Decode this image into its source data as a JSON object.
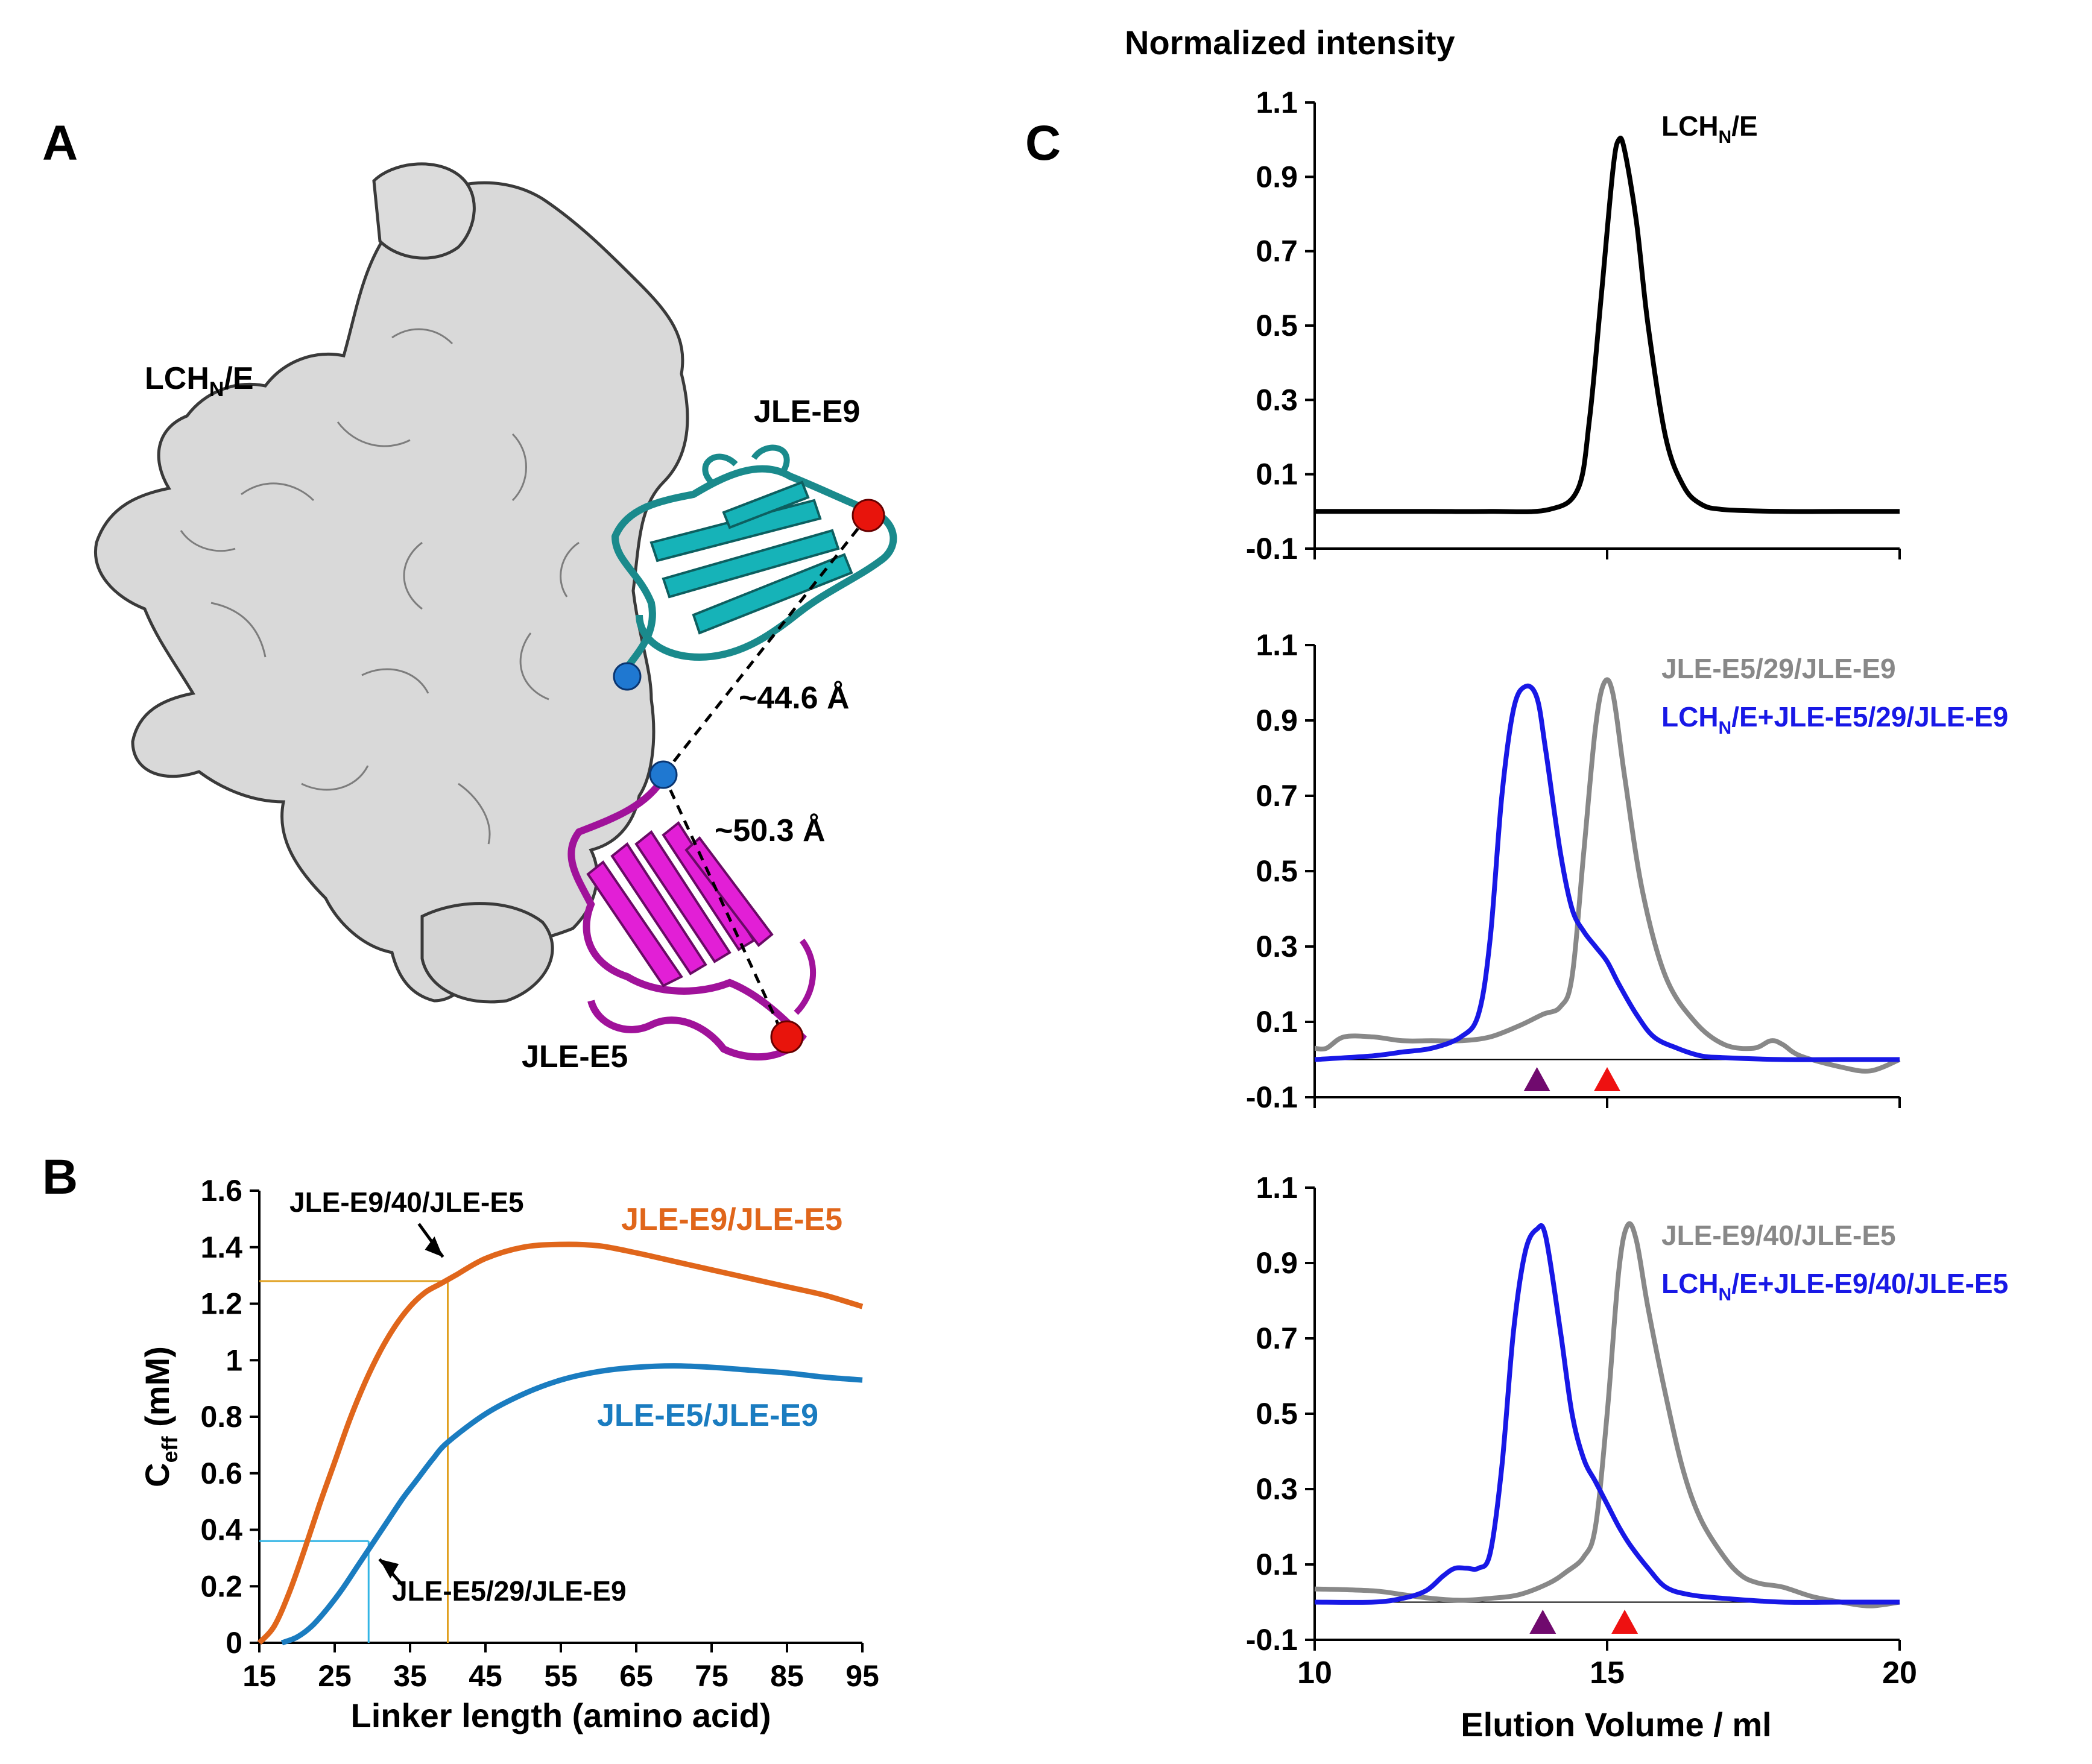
{
  "panels": {
    "A": {
      "letter": "A",
      "labels": {
        "lchn": "LCH",
        "lchn_sub": "N",
        "lchn_rest": "/E",
        "e9": "JLE-E9",
        "e5": "JLE-E5"
      },
      "distances": [
        "~44.6 Å",
        "~50.3 Å"
      ],
      "colors": {
        "surface": "#d9d9d9",
        "e9_ribbon": "#1a8a8c",
        "e9_strand": "#16b3b8",
        "e5_ribbon": "#a0129a",
        "e5_strand": "#e21fd6",
        "nterm": "#1f78d1",
        "cterm": "#e8140c"
      }
    },
    "B": {
      "letter": "B"
    },
    "C": {
      "letter": "C",
      "ylabel": "Normalized intensity",
      "xlabel": "Elution Volume / ml"
    }
  },
  "chart_data": [
    {
      "id": "B",
      "type": "line",
      "xlabel": "Linker length (amino acid)",
      "ylabel": "C",
      "ylabel_sub": "eff",
      "ylabel_unit": " (mM)",
      "xlim": [
        15,
        95
      ],
      "ylim": [
        0,
        1.6
      ],
      "xticks": [
        "15",
        "25",
        "35",
        "45",
        "55",
        "65",
        "75",
        "85",
        "95"
      ],
      "yticks": [
        "0",
        "0.2",
        "0.4",
        "0.6",
        "0.8",
        "1",
        "1.2",
        "1.4",
        "1.6"
      ],
      "series": [
        {
          "name": "JLE-E9/JLE-E5",
          "color": "#e0661b",
          "x": [
            15,
            17,
            19,
            21,
            23,
            25,
            27,
            29,
            31,
            33,
            35,
            37,
            39,
            41,
            45,
            50,
            55,
            60,
            65,
            70,
            75,
            80,
            85,
            90,
            95
          ],
          "y": [
            0,
            0.06,
            0.18,
            0.33,
            0.49,
            0.64,
            0.79,
            0.92,
            1.03,
            1.12,
            1.19,
            1.24,
            1.27,
            1.3,
            1.36,
            1.4,
            1.41,
            1.405,
            1.38,
            1.35,
            1.32,
            1.29,
            1.26,
            1.23,
            1.19
          ]
        },
        {
          "name": "JLE-E5/JLE-E9",
          "color": "#1a7cc0",
          "x": [
            18,
            20,
            22,
            24,
            26,
            28,
            30,
            32,
            34,
            36,
            38,
            40,
            45,
            50,
            55,
            60,
            65,
            70,
            75,
            80,
            85,
            90,
            95
          ],
          "y": [
            0,
            0.02,
            0.06,
            0.12,
            0.19,
            0.27,
            0.35,
            0.43,
            0.51,
            0.58,
            0.65,
            0.71,
            0.81,
            0.88,
            0.93,
            0.96,
            0.975,
            0.98,
            0.975,
            0.965,
            0.955,
            0.94,
            0.93
          ]
        }
      ],
      "annotations": [
        {
          "text": "JLE-E9/40/JLE-E5",
          "x": 40,
          "y": 1.28,
          "color": "#e0a020"
        },
        {
          "text": "JLE-E5/29/JLE-E9",
          "x": 29.5,
          "y": 0.36,
          "color": "#33b5e5"
        }
      ]
    },
    {
      "id": "C1",
      "type": "line",
      "xlim": [
        10,
        20
      ],
      "ylim": [
        -0.1,
        1.1
      ],
      "yticks": [
        "-0.1",
        "0.1",
        "0.3",
        "0.5",
        "0.7",
        "0.9",
        "1.1"
      ],
      "series": [
        {
          "name": "LCHN/E",
          "name_main": "LCH",
          "name_sub": "N",
          "name_rest": "/E",
          "color": "#000000",
          "x": [
            10,
            11,
            12,
            13,
            14,
            14.5,
            14.7,
            14.9,
            15.1,
            15.2,
            15.3,
            15.5,
            15.7,
            16,
            16.3,
            16.6,
            17,
            18,
            19,
            20
          ],
          "y": [
            0,
            0,
            0,
            0,
            0.005,
            0.06,
            0.25,
            0.58,
            0.92,
            1.0,
            0.97,
            0.78,
            0.5,
            0.2,
            0.07,
            0.02,
            0.005,
            0,
            0,
            0
          ]
        }
      ]
    },
    {
      "id": "C2",
      "type": "line",
      "xlim": [
        10,
        20
      ],
      "ylim": [
        -0.1,
        1.1
      ],
      "yticks": [
        "-0.1",
        "0.1",
        "0.3",
        "0.5",
        "0.7",
        "0.9",
        "1.1"
      ],
      "series": [
        {
          "name": "JLE-E5/29/JLE-E9",
          "color": "#888888",
          "x": [
            10,
            10.2,
            10.5,
            11,
            11.5,
            12,
            12.5,
            13,
            13.5,
            13.9,
            14.2,
            14.4,
            14.6,
            14.8,
            14.95,
            15.1,
            15.3,
            15.6,
            16,
            16.5,
            17,
            17.5,
            17.8,
            18,
            18.3,
            19,
            19.5,
            20
          ],
          "y": [
            0.03,
            0.03,
            0.06,
            0.06,
            0.05,
            0.05,
            0.05,
            0.06,
            0.09,
            0.12,
            0.14,
            0.22,
            0.55,
            0.88,
            1.0,
            0.97,
            0.75,
            0.45,
            0.22,
            0.1,
            0.04,
            0.03,
            0.05,
            0.04,
            0.01,
            -0.02,
            -0.03,
            0
          ]
        },
        {
          "name": "LCHN/E+JLE-E5/29/JLE-E9",
          "name_main": "LCH",
          "name_sub": "N",
          "name_rest": "/E+JLE-E5/29/JLE-E9",
          "color": "#1818e6",
          "x": [
            10,
            11,
            11.5,
            12,
            12.5,
            12.8,
            13,
            13.2,
            13.4,
            13.6,
            13.8,
            13.95,
            14.2,
            14.4,
            14.6,
            14.8,
            15,
            15.2,
            15.5,
            15.8,
            16.2,
            16.6,
            17,
            18,
            19,
            20
          ],
          "y": [
            0,
            0.01,
            0.02,
            0.03,
            0.06,
            0.12,
            0.32,
            0.7,
            0.93,
            0.99,
            0.96,
            0.82,
            0.55,
            0.4,
            0.34,
            0.3,
            0.26,
            0.2,
            0.12,
            0.06,
            0.03,
            0.01,
            0.005,
            0,
            0,
            0
          ]
        }
      ],
      "markers": [
        {
          "x": 13.8,
          "color": "#700a6e"
        },
        {
          "x": 15.0,
          "color": "#ee1111"
        }
      ]
    },
    {
      "id": "C3",
      "type": "line",
      "xlim": [
        10,
        20
      ],
      "ylim": [
        -0.1,
        1.1
      ],
      "xticks": [
        "10",
        "15",
        "20"
      ],
      "yticks": [
        "-0.1",
        "0.1",
        "0.3",
        "0.5",
        "0.7",
        "0.9",
        "1.1"
      ],
      "series": [
        {
          "name": "JLE-E9/40/JLE-E5",
          "color": "#888888",
          "x": [
            10,
            11,
            11.5,
            12,
            12.5,
            13,
            13.5,
            14,
            14.3,
            14.6,
            14.8,
            15,
            15.2,
            15.35,
            15.5,
            15.7,
            16,
            16.3,
            16.6,
            17,
            17.3,
            17.6,
            18,
            18.5,
            19,
            19.5,
            20
          ],
          "y": [
            0.035,
            0.03,
            0.02,
            0.01,
            0.005,
            0.01,
            0.02,
            0.05,
            0.08,
            0.12,
            0.2,
            0.5,
            0.88,
            1.0,
            0.96,
            0.78,
            0.55,
            0.35,
            0.22,
            0.12,
            0.07,
            0.05,
            0.04,
            0.015,
            0,
            -0.01,
            0
          ]
        },
        {
          "name": "LCHN/E+JLE-E9/40/JLE-E5",
          "name_main": "LCH",
          "name_sub": "N",
          "name_rest": "/E+JLE-E9/40/JLE-E5",
          "color": "#1818e6",
          "x": [
            10,
            11,
            11.5,
            11.9,
            12.2,
            12.4,
            12.6,
            12.8,
            13,
            13.2,
            13.4,
            13.6,
            13.8,
            13.95,
            14.2,
            14.4,
            14.6,
            14.8,
            15,
            15.2,
            15.4,
            15.7,
            16,
            16.4,
            17,
            18,
            19,
            20
          ],
          "y": [
            0,
            0,
            0.01,
            0.03,
            0.07,
            0.09,
            0.09,
            0.09,
            0.13,
            0.36,
            0.72,
            0.93,
            0.99,
            0.97,
            0.72,
            0.5,
            0.38,
            0.32,
            0.26,
            0.2,
            0.15,
            0.09,
            0.04,
            0.02,
            0.01,
            0,
            0,
            0
          ]
        }
      ],
      "markers": [
        {
          "x": 13.9,
          "color": "#700a6e"
        },
        {
          "x": 15.3,
          "color": "#ee1111"
        }
      ]
    }
  ]
}
